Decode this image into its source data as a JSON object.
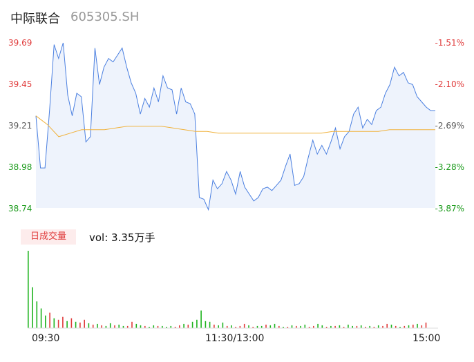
{
  "header": {
    "name": "中际联合",
    "code": "605305.SH"
  },
  "chart_data": [
    {
      "type": "line",
      "time": [
        "09:30",
        "11:30/13:00",
        "15:00"
      ],
      "yticks_left": [
        "39.69",
        "39.45",
        "39.21",
        "38.98",
        "38.74"
      ],
      "yticks_right": [
        "-1.51%",
        "-2.10%",
        "-2.69%",
        "-3.28%",
        "-3.87%"
      ],
      "ylim": [
        38.74,
        39.69
      ],
      "series": [
        {
          "color": "#4a7fe0",
          "values": [
            39.27,
            38.97,
            38.97,
            39.3,
            39.68,
            39.6,
            39.69,
            39.39,
            39.27,
            39.4,
            39.38,
            39.12,
            39.15,
            39.66,
            39.45,
            39.55,
            39.6,
            39.58,
            39.62,
            39.66,
            39.55,
            39.46,
            39.4,
            39.28,
            39.37,
            39.32,
            39.43,
            39.35,
            39.5,
            39.43,
            39.42,
            39.28,
            39.43,
            39.35,
            39.34,
            39.28,
            38.8,
            38.79,
            38.73,
            38.9,
            38.85,
            38.88,
            38.95,
            38.9,
            38.82,
            38.95,
            38.86,
            38.82,
            38.78,
            38.8,
            38.85,
            38.86,
            38.84,
            38.87,
            38.9,
            38.98,
            39.05,
            38.87,
            38.88,
            38.92,
            39.03,
            39.13,
            39.05,
            39.1,
            39.05,
            39.12,
            39.2,
            39.08,
            39.15,
            39.18,
            39.28,
            39.32,
            39.2,
            39.25,
            39.22,
            39.3,
            39.32,
            39.4,
            39.45,
            39.55,
            39.5,
            39.52,
            39.46,
            39.45,
            39.38,
            39.35,
            39.32,
            39.3,
            39.3
          ],
          "start_time": "09:30",
          "end_time": "15:00"
        },
        {
          "color": "#f0b13a",
          "values": [
            39.27,
            39.22,
            39.15,
            39.17,
            39.19,
            39.19,
            39.19,
            39.2,
            39.21,
            39.21,
            39.21,
            39.21,
            39.2,
            39.19,
            39.18,
            39.18,
            39.17,
            39.17,
            39.17,
            39.17,
            39.17,
            39.17,
            39.17,
            39.17,
            39.17,
            39.17,
            39.18,
            39.18,
            39.18,
            39.18,
            39.18,
            39.19,
            39.19,
            39.19,
            39.19,
            39.19
          ]
        }
      ]
    },
    {
      "type": "bar",
      "title": "日成交量",
      "annotation": "vol: 3.35万手",
      "up_color": "#e03a3a",
      "down_color": "#1db31d",
      "values": [
        110,
        58,
        38,
        28,
        18,
        22,
        14,
        12,
        16,
        10,
        14,
        9,
        8,
        12,
        7,
        5,
        6,
        4,
        3,
        7,
        4,
        5,
        3,
        3,
        9,
        6,
        4,
        3,
        2,
        4,
        3,
        3,
        2,
        3,
        2,
        4,
        6,
        5,
        9,
        12,
        25,
        10,
        9,
        5,
        4,
        8,
        3,
        4,
        2,
        3,
        6,
        4,
        2,
        3,
        3,
        5,
        4,
        6,
        3,
        2,
        2,
        4,
        3,
        3,
        5,
        2,
        3,
        6,
        4,
        2,
        3,
        3,
        4,
        2,
        5,
        3,
        3,
        4,
        2,
        3,
        2,
        4,
        3,
        6,
        5,
        3,
        2,
        3,
        4,
        5,
        6,
        4,
        8
      ],
      "up_flags": [
        0,
        0,
        0,
        0,
        0,
        1,
        0,
        1,
        1,
        0,
        1,
        0,
        1,
        1,
        0,
        1,
        0,
        1,
        0,
        0,
        1,
        0,
        0,
        1,
        1,
        0,
        0,
        1,
        0,
        0,
        1,
        0,
        0,
        0,
        1,
        1,
        0,
        1,
        0,
        0,
        0,
        0,
        0,
        1,
        0,
        0,
        1,
        0,
        1,
        1,
        1,
        0,
        1,
        0,
        0,
        1,
        0,
        0,
        1,
        0,
        1,
        0,
        1,
        0,
        0,
        1,
        1,
        0,
        0,
        1,
        0,
        1,
        0,
        1,
        0,
        0,
        1,
        0,
        1,
        0,
        1,
        0,
        1,
        1,
        0,
        1,
        0,
        1,
        0,
        1,
        0,
        1,
        1
      ]
    }
  ]
}
